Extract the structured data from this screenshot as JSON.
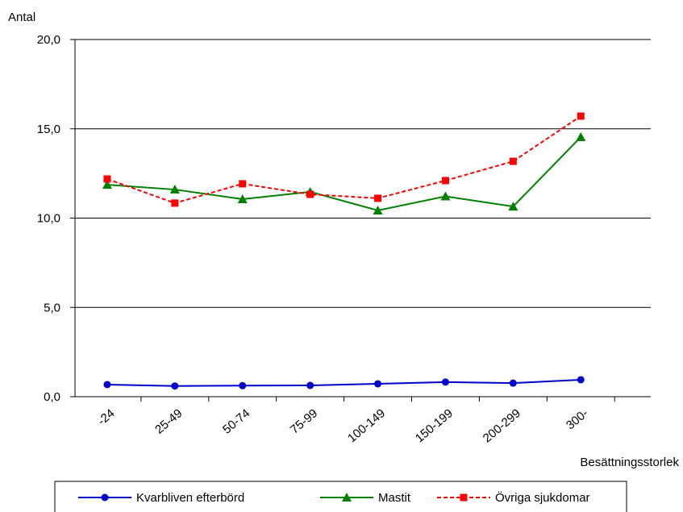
{
  "chart_data": {
    "type": "line",
    "y_label": "Antal",
    "x_label": "Besättningsstorlek",
    "categories": [
      "-24",
      "25-49",
      "50-74",
      "75-99",
      "100-149",
      "150-199",
      "200-299",
      "300-"
    ],
    "series": [
      {
        "name": "Kvarbliven efterbörd",
        "color": "#0000cc",
        "marker": "circle",
        "dashed": false,
        "values": [
          0.68,
          0.6,
          0.62,
          0.63,
          0.72,
          0.82,
          0.76,
          0.95
        ]
      },
      {
        "name": "Mastit",
        "color": "#008000",
        "marker": "triangle",
        "dashed": false,
        "values": [
          11.87,
          11.6,
          11.06,
          11.47,
          10.43,
          11.22,
          10.65,
          14.54
        ]
      },
      {
        "name": "Övriga sjukdomar",
        "color": "#ff0000",
        "marker": "square",
        "dashed": true,
        "values": [
          12.19,
          10.84,
          11.92,
          11.33,
          11.11,
          12.1,
          13.18,
          15.71
        ]
      }
    ],
    "ylim": [
      0,
      20
    ],
    "yticks": [
      {
        "value": 0,
        "label": "0,0"
      },
      {
        "value": 5,
        "label": "5,0"
      },
      {
        "value": 10,
        "label": "10,0"
      },
      {
        "value": 15,
        "label": "15,0"
      },
      {
        "value": 20,
        "label": "20,0"
      }
    ],
    "grid": true,
    "legend": "bottom"
  }
}
